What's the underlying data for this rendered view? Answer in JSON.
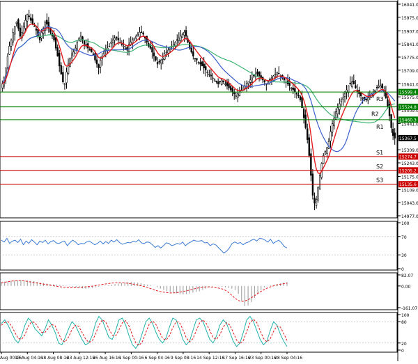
{
  "chart_data": {
    "type": "candlestick",
    "main": {
      "ylim": [
        14977,
        16041
      ],
      "y_ticks": [
        "16041.0",
        "15975.0",
        "15907.0",
        "15841.0",
        "15775.0",
        "15709.0",
        "15641.0",
        "15575.0",
        "15509.0",
        "15441.0",
        "15375.0",
        "15309.0",
        "15243.0",
        "15175.0",
        "15109.0",
        "15043.0",
        "14977.0"
      ],
      "levels": [
        {
          "label": "R3",
          "value": 15599.4,
          "price_label": "15599.4",
          "color": "#008000"
        },
        {
          "label": "R2",
          "value": 15524.8,
          "price_label": "15524.8",
          "color": "#008000"
        },
        {
          "label": "R1",
          "value": 15460.3,
          "price_label": "15460.3",
          "color": "#008000"
        },
        {
          "label": "S1",
          "value": 15274.7,
          "price_label": "15274.7",
          "color": "#cc0000"
        },
        {
          "label": "S2",
          "value": 15205.2,
          "price_label": "15205.2",
          "color": "#cc0000"
        },
        {
          "label": "S3",
          "value": 15135.6,
          "price_label": "15135.6",
          "color": "#cc0000"
        }
      ],
      "last_price": {
        "value": 15367.5,
        "label": "15367.5"
      },
      "close": [
        15640,
        15670,
        15720,
        15780,
        15830,
        15860,
        15900,
        15930,
        15950,
        15920,
        15880,
        15900,
        15930,
        15960,
        15990,
        15980,
        15960,
        15940,
        15930,
        15910,
        15880,
        15860,
        15900,
        15920,
        15950,
        15940,
        15920,
        15900,
        15880,
        15860,
        15820,
        15780,
        15730,
        15690,
        15650,
        15640,
        15700,
        15740,
        15770,
        15790,
        15800,
        15820,
        15850,
        15870,
        15880,
        15860,
        15840,
        15830,
        15820,
        15810,
        15800,
        15790,
        15760,
        15740,
        15720,
        15760,
        15780,
        15800,
        15810,
        15820,
        15830,
        15850,
        15860,
        15870,
        15870,
        15860,
        15850,
        15840,
        15830,
        15820,
        15810,
        15840,
        15850,
        15860,
        15870,
        15880,
        15890,
        15900,
        15900,
        15890,
        15870,
        15850,
        15830,
        15820,
        15800,
        15780,
        15760,
        15740,
        15750,
        15760,
        15770,
        15790,
        15800,
        15810,
        15820,
        15830,
        15840,
        15850,
        15860,
        15870,
        15880,
        15890,
        15900,
        15880,
        15850,
        15820,
        15800,
        15780,
        15770,
        15760,
        15750,
        15740,
        15730,
        15720,
        15710,
        15700,
        15690,
        15680,
        15670,
        15660,
        15650,
        15640,
        15650,
        15660,
        15650,
        15640,
        15630,
        15620,
        15610,
        15600,
        15590,
        15580,
        15590,
        15600,
        15610,
        15620,
        15630,
        15640,
        15650,
        15660,
        15670,
        15680,
        15690,
        15690,
        15680,
        15670,
        15660,
        15650,
        15640,
        15650,
        15660,
        15670,
        15680,
        15690,
        15700,
        15690,
        15680,
        15670,
        15660,
        15650,
        15640,
        15630,
        15620,
        15610,
        15600,
        15590,
        15580,
        15560,
        15520,
        15470,
        15420,
        15360,
        15280,
        15180,
        15080,
        15040,
        15060,
        15120,
        15180,
        15240,
        15280,
        15300,
        15320,
        15350,
        15400,
        15440,
        15470,
        15500,
        15520,
        15540,
        15560,
        15570,
        15590,
        15610,
        15630,
        15640,
        15650,
        15640,
        15620,
        15600,
        15590,
        15580,
        15570,
        15560,
        15560,
        15570,
        15580,
        15590,
        15600,
        15610,
        15620,
        15630,
        15630,
        15620,
        15600,
        15570,
        15530,
        15480,
        15420,
        15380,
        15367
      ]
    },
    "x_labels": [
      "Aug 00:16",
      "13 Aug 04:16",
      "18 Aug 08:16",
      "23 Aug 12:16",
      "26 Aug 16:16",
      "1 Sep 00:16",
      "6 Sep 04:16",
      "9 Sep 08:16",
      "14 Sep 12:16",
      "17 Sep 16:16",
      "23 Sep 00:16",
      "28 Sep 04:16"
    ],
    "rsi": {
      "ylim": [
        0,
        100
      ],
      "y_ticks": [
        "100",
        "70",
        "30",
        "0"
      ],
      "values": [
        62,
        58,
        66,
        55,
        60,
        62,
        57,
        64,
        52,
        60,
        55,
        63,
        58,
        52,
        60,
        57,
        62,
        54,
        59,
        61,
        56,
        55,
        58,
        60,
        50,
        57,
        62,
        58,
        52,
        55,
        54,
        58,
        60,
        56,
        52,
        55,
        60,
        54,
        59,
        55,
        62,
        58,
        63,
        57,
        53,
        55,
        57,
        56,
        60,
        58,
        63,
        56,
        55,
        58,
        57,
        52,
        46,
        50,
        45,
        50,
        56,
        55,
        50,
        52,
        55,
        53,
        58,
        50,
        55,
        58,
        62,
        60,
        60,
        61,
        56,
        57,
        50,
        54,
        52,
        46,
        40,
        34,
        38,
        45,
        55,
        58,
        55,
        57,
        52,
        56,
        58,
        62,
        64,
        60,
        66,
        65,
        62,
        58,
        64,
        55,
        59,
        62,
        56,
        48,
        45
      ]
    },
    "macd": {
      "ylim": [
        -161.07,
        82.07
      ],
      "y_ticks": [
        "82.07",
        "0.00",
        "-161.07"
      ],
      "histogram": [
        30,
        32,
        35,
        38,
        40,
        42,
        43,
        42,
        40,
        38,
        36,
        30,
        25,
        22,
        18,
        15,
        12,
        10,
        8,
        5,
        2,
        -5,
        -8,
        -12,
        -15,
        -18,
        -20,
        -18,
        -15,
        -10,
        -5,
        -2,
        2,
        5,
        10,
        15,
        18,
        22,
        25,
        28,
        30,
        28,
        25,
        20,
        15,
        10,
        5,
        0,
        -10,
        -20,
        -30,
        -40,
        -45,
        -50,
        -55,
        -60,
        -62,
        -60,
        -55,
        -50,
        -45,
        -40,
        -30,
        -20,
        -10,
        -5,
        0,
        -2,
        -5,
        -10,
        -15,
        -20,
        -30,
        -60,
        -110,
        -150,
        -145,
        -120,
        -90,
        -60,
        -30,
        -10,
        0,
        5,
        10,
        15,
        20,
        25,
        30
      ],
      "signal": [
        22,
        28,
        32,
        36,
        38,
        40,
        40,
        38,
        34,
        30,
        26,
        22,
        18,
        14,
        10,
        6,
        2,
        -2,
        -6,
        -9,
        -11,
        -12,
        -13,
        -13,
        -12,
        -10,
        -7,
        -4,
        -1,
        3,
        7,
        11,
        15,
        18,
        21,
        23,
        24,
        24,
        23,
        20,
        16,
        12,
        7,
        2,
        -4,
        -12,
        -20,
        -28,
        -36,
        -42,
        -46,
        -50,
        -52,
        -52,
        -50,
        -46,
        -41,
        -36,
        -30,
        -24,
        -18,
        -13,
        -9,
        -7,
        -7,
        -9,
        -12,
        -16,
        -22,
        -32,
        -48,
        -70,
        -92,
        -108,
        -115,
        -112,
        -102,
        -88,
        -72,
        -55,
        -40,
        -26,
        -15,
        -6,
        2,
        8,
        13,
        17,
        20
      ]
    },
    "stochastic": {
      "ylim": [
        0,
        100
      ],
      "y_ticks": [
        "100",
        "80",
        "20",
        "0"
      ],
      "k": [
        75,
        85,
        70,
        50,
        30,
        20,
        40,
        70,
        90,
        80,
        60,
        50,
        40,
        60,
        85,
        70,
        50,
        20,
        15,
        35,
        60,
        80,
        70,
        50,
        30,
        15,
        20,
        40,
        75,
        95,
        85,
        60,
        35,
        30,
        55,
        85,
        90,
        70,
        40,
        15,
        5,
        20,
        50,
        80,
        90,
        75,
        50,
        30,
        20,
        35,
        65,
        90,
        85,
        60,
        30,
        15,
        25,
        55,
        85,
        90,
        80,
        55,
        30,
        20,
        40,
        70,
        85,
        75,
        50,
        25,
        10,
        20,
        50,
        85,
        95,
        80,
        55,
        30,
        15,
        25,
        55,
        80,
        70,
        45,
        25,
        10
      ],
      "d": [
        70,
        78,
        80,
        68,
        50,
        33,
        30,
        43,
        67,
        80,
        77,
        63,
        50,
        50,
        62,
        72,
        68,
        47,
        28,
        23,
        37,
        58,
        70,
        67,
        50,
        32,
        22,
        25,
        45,
        70,
        85,
        80,
        60,
        42,
        40,
        57,
        77,
        83,
        67,
        42,
        20,
        13,
        25,
        50,
        73,
        82,
        72,
        52,
        33,
        28,
        40,
        63,
        80,
        78,
        58,
        35,
        23,
        32,
        55,
        77,
        85,
        75,
        55,
        35,
        30,
        43,
        65,
        77,
        70,
        50,
        28,
        18,
        27,
        52,
        77,
        87,
        77,
        55,
        33,
        23,
        32,
        53,
        68,
        65,
        47,
        27
      ]
    }
  }
}
